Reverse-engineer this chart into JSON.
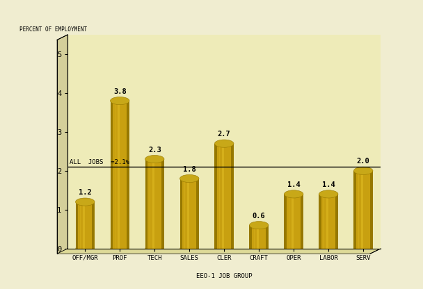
{
  "categories": [
    "OFF/MGR",
    "PROF",
    "TECH",
    "SALES",
    "CLER",
    "CRAFT",
    "OPER",
    "LABOR",
    "SERV"
  ],
  "values": [
    1.2,
    3.8,
    2.3,
    1.8,
    2.7,
    0.6,
    1.4,
    1.4,
    2.0
  ],
  "bar_color_main": "#C8A010",
  "bar_color_light": "#DDB820",
  "bar_color_dark": "#967800",
  "bar_color_top": "#C8A818",
  "reference_line": 2.1,
  "reference_label": "ALL  JOBS  =2.1%",
  "ylabel": "PERCENT OF EMPLOYMENT",
  "xlabel": "EEO-1 JOB GROUP",
  "ylim": [
    0,
    5.5
  ],
  "yticks": [
    0,
    1,
    2,
    3,
    4,
    5
  ],
  "bg_color": "#F0EDD0",
  "plot_bg_color": "#EEEBB8",
  "wall_color": "#E8E4C0",
  "wall_dark_color": "#D4CF9A",
  "floor_color": "#DEDA98"
}
